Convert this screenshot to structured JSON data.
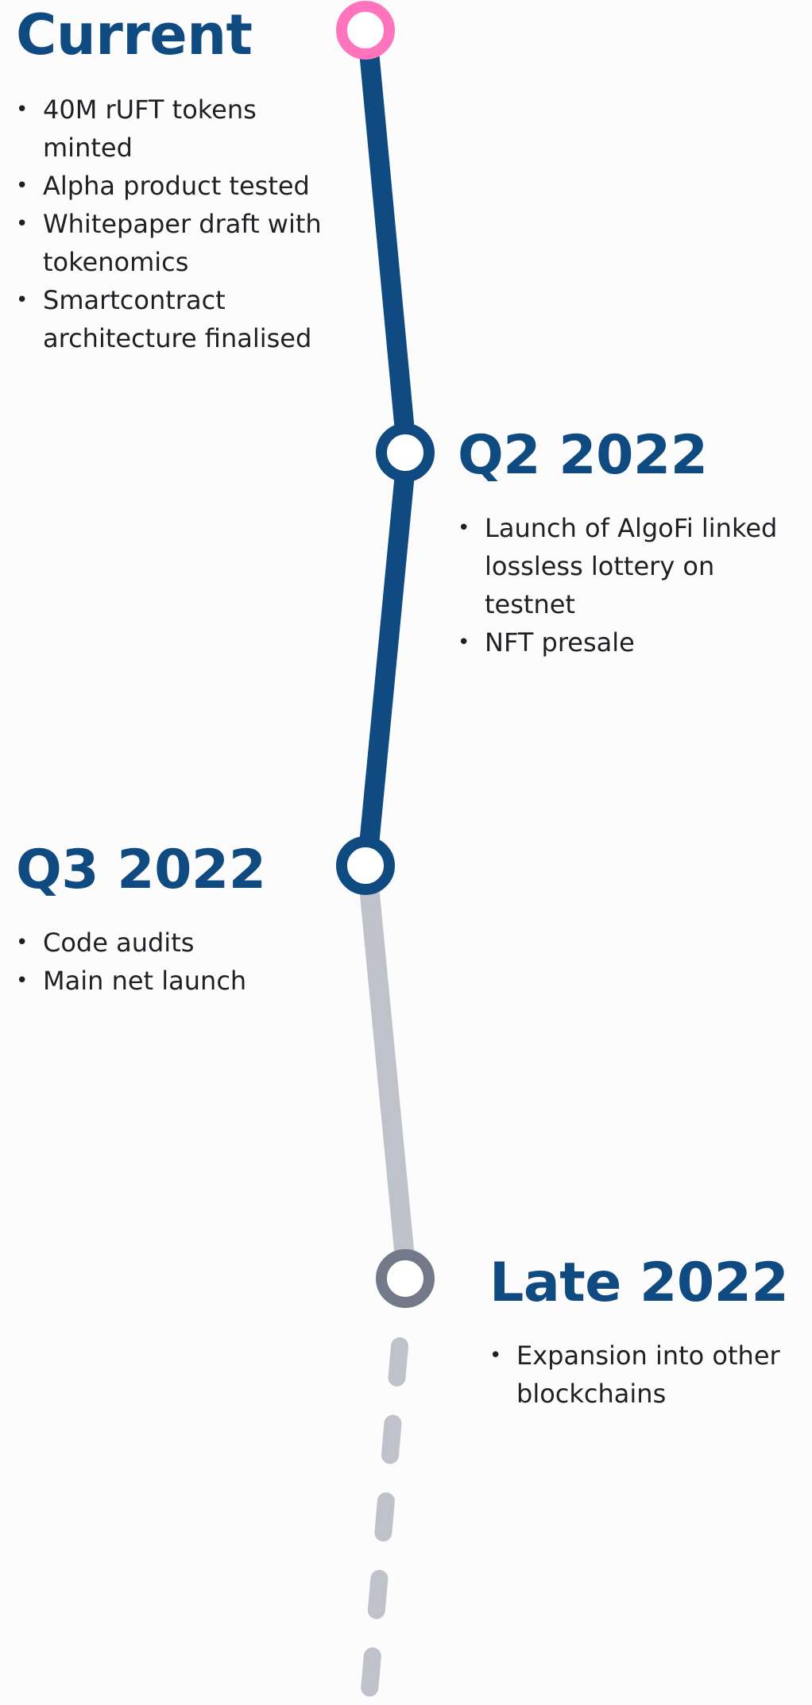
{
  "colors": {
    "done": "#0f4a81",
    "current_marker": "#ff74bd",
    "upcoming": "#bfc2ca",
    "upcoming_marker": "#737988",
    "title": "#0f4a81",
    "text": "#1f1f24"
  },
  "milestones": [
    {
      "title": "Current",
      "status": "current",
      "items": [
        "40M rUFT tokens minted",
        "Alpha product tested",
        "Whitepaper draft with tokenomics",
        "Smartcontract architecture finalised"
      ]
    },
    {
      "title": "Q2 2022",
      "status": "done",
      "items": [
        "Launch of AlgoFi linked  lossless lottery on testnet",
        "NFT presale"
      ]
    },
    {
      "title": "Q3 2022",
      "status": "done",
      "items": [
        "Code audits",
        "Main net launch"
      ]
    },
    {
      "title": "Late 2022",
      "status": "upcoming",
      "items": [
        "Expansion into other blockchains"
      ]
    }
  ]
}
